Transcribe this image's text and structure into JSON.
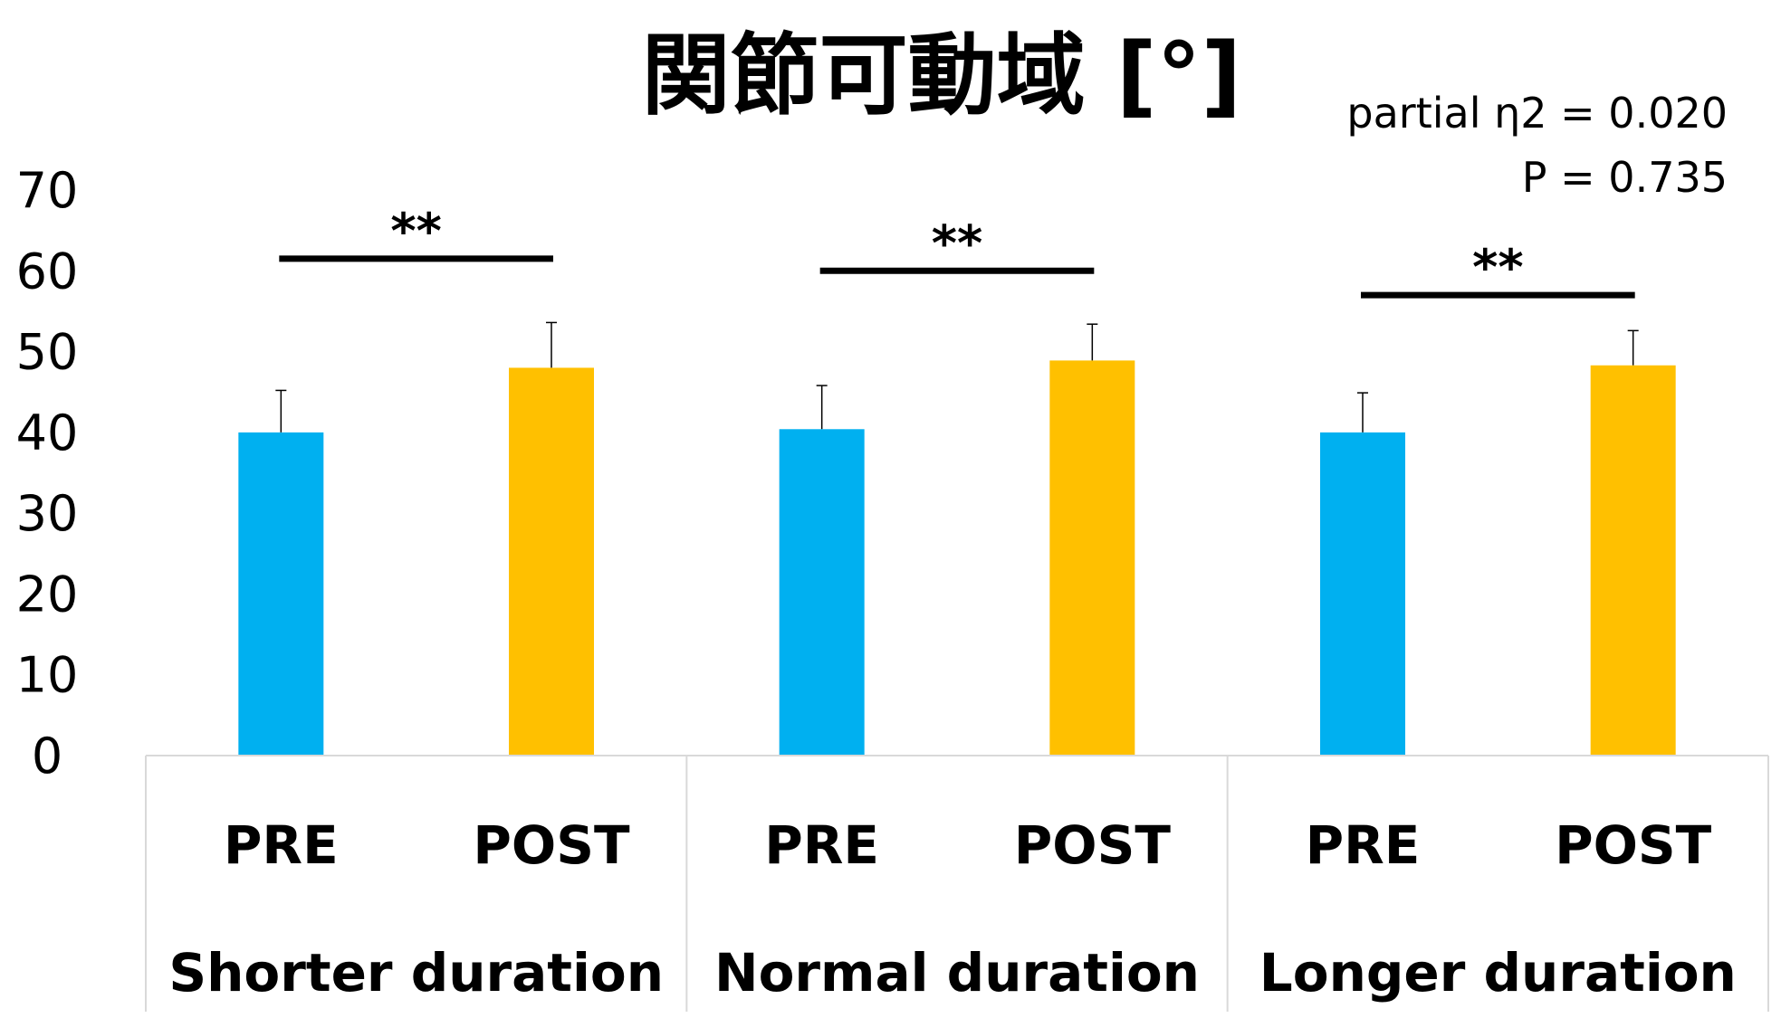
{
  "chart_data": {
    "type": "bar",
    "title": "関節可動域 [°]",
    "annotations": {
      "effect_size": "partial η2 = 0.020",
      "p_value": "P = 0.735"
    },
    "yticks": [
      "0",
      "10",
      "20",
      "30",
      "40",
      "50",
      "60",
      "70"
    ],
    "ylim": [
      0,
      70
    ],
    "grid": false,
    "groups": [
      {
        "name": "Shorter duration",
        "bars": [
          {
            "label": "PRE",
            "value": 40.0,
            "error": 5.2,
            "color": "#00B0F0"
          },
          {
            "label": "POST",
            "value": 48.0,
            "error": 5.6,
            "color": "#FFC000"
          }
        ],
        "significance": "**",
        "sig_level": 61.5
      },
      {
        "name": "Normal duration",
        "bars": [
          {
            "label": "PRE",
            "value": 40.4,
            "error": 5.4,
            "color": "#00B0F0"
          },
          {
            "label": "POST",
            "value": 48.9,
            "error": 4.5,
            "color": "#FFC000"
          }
        ],
        "significance": "**",
        "sig_level": 60.0
      },
      {
        "name": "Longer duration",
        "bars": [
          {
            "label": "PRE",
            "value": 40.0,
            "error": 4.9,
            "color": "#00B0F0"
          },
          {
            "label": "POST",
            "value": 48.3,
            "error": 4.3,
            "color": "#FFC000"
          }
        ],
        "significance": "**",
        "sig_level": 57.0
      }
    ]
  }
}
